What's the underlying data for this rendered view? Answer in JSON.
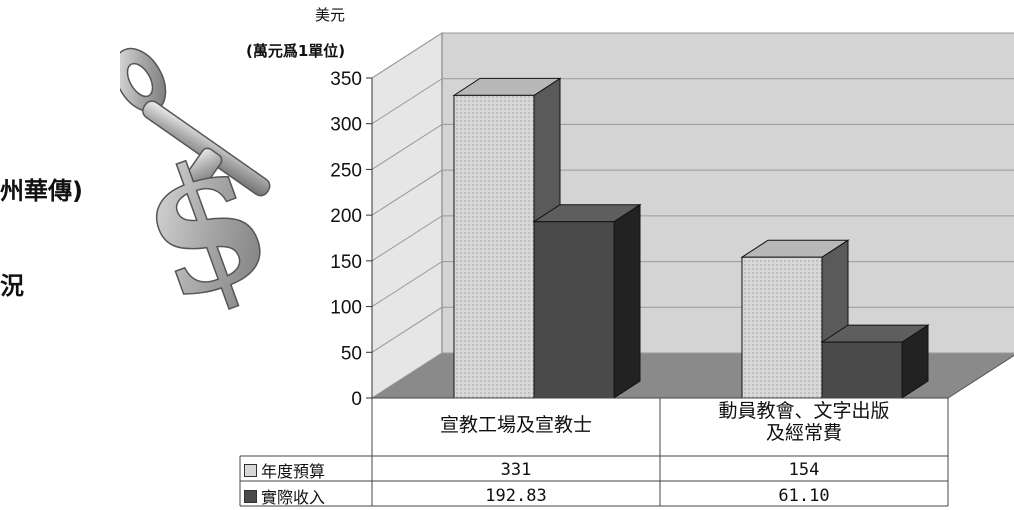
{
  "side_text": [
    "州華傳)",
    "況"
  ],
  "unit_label": [
    "美元",
    "(萬元爲1單位)"
  ],
  "chart_data": {
    "type": "bar",
    "categories": [
      "宣教工場及宣教士",
      "動員教會、文字出版及經常費"
    ],
    "category_lines": [
      [
        "宣教工場及宣教士"
      ],
      [
        "動員教會、文字出版",
        "及經常費"
      ]
    ],
    "series": [
      {
        "name": "年度預算",
        "values": [
          331,
          154
        ],
        "labels": [
          "331",
          "154"
        ],
        "color": "#d8d8d8"
      },
      {
        "name": "實際收入",
        "values": [
          192.83,
          61.1
        ],
        "labels": [
          "192.83",
          "61.10"
        ],
        "color": "#4a4a4a"
      }
    ],
    "ylim": [
      0,
      350
    ],
    "yticks": [
      0,
      50,
      100,
      150,
      200,
      250,
      300,
      350
    ],
    "grid": true,
    "legend_placement": "data-table",
    "style": "3d-column"
  }
}
